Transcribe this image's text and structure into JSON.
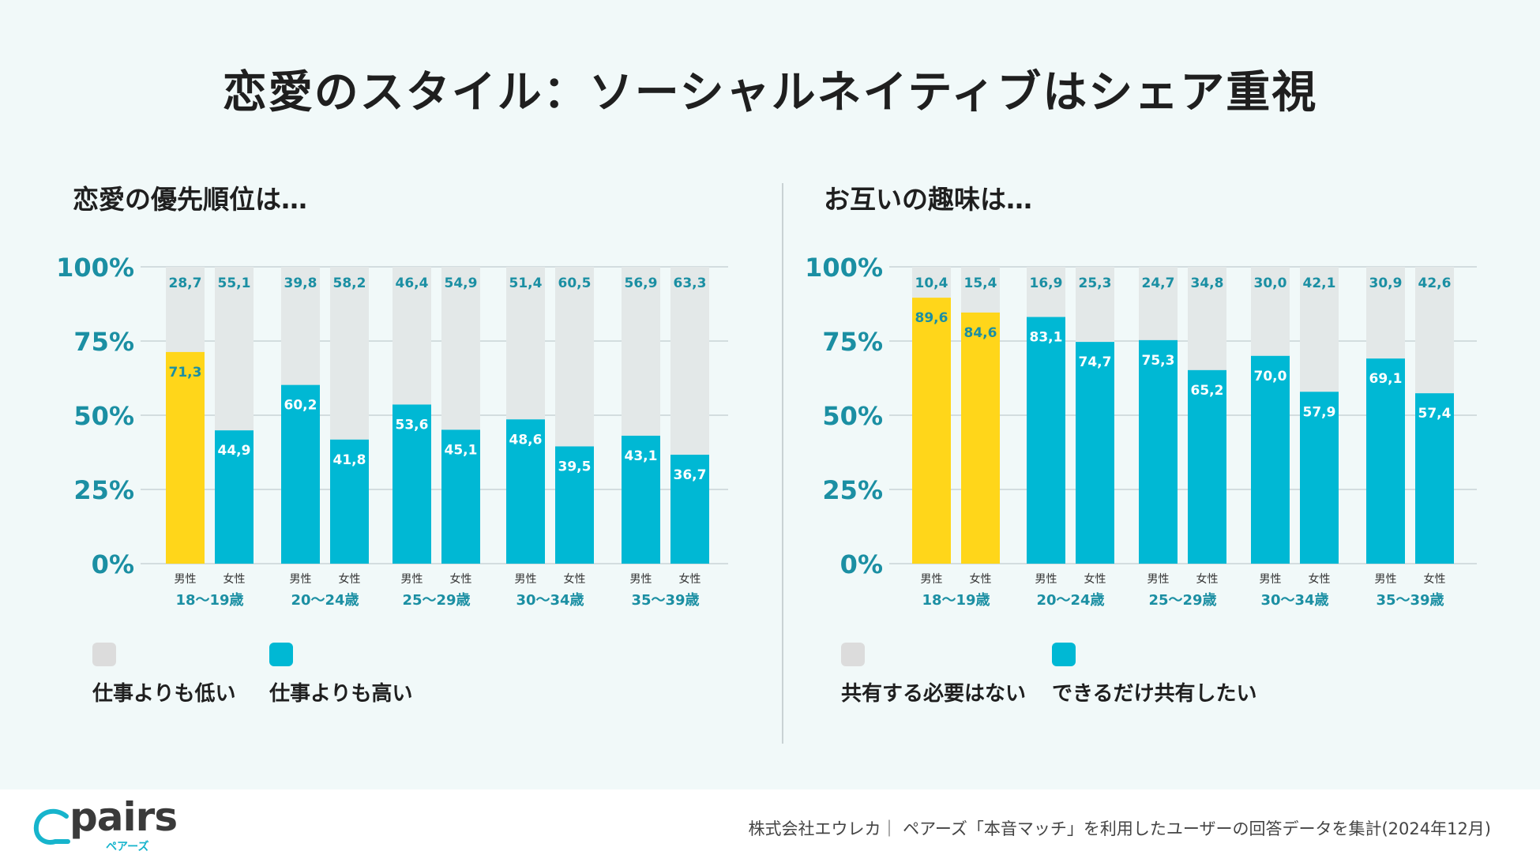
{
  "title": "恋愛のスタイル：ソーシャルネイティブはシェア重視",
  "colors": {
    "gray": "#e3e8e8",
    "blue": "#00b8d4",
    "yellow": "#ffd61a",
    "tick": "#1b8fa3",
    "bg": "#f1f9f9"
  },
  "left": {
    "heading": "恋愛の優先順位は…",
    "legend": {
      "gray_label": "仕事よりも低い",
      "blue_label": "仕事よりも高い"
    }
  },
  "right": {
    "heading": "お互いの趣味は…",
    "legend": {
      "gray_label": "共有する必要はない",
      "blue_label": "できるだけ共有したい"
    }
  },
  "chart_data": [
    {
      "type": "bar",
      "title": "恋愛の優先順位は…",
      "ylim": [
        0,
        100
      ],
      "yticks": [
        "0%",
        "25%",
        "50%",
        "75%",
        "100%"
      ],
      "groups": [
        "18〜19歳",
        "20〜24歳",
        "25〜29歳",
        "30〜34歳",
        "35〜39歳"
      ],
      "subcategories": [
        "男性",
        "女性"
      ],
      "highlight_group": 0,
      "highlight_sub": 0,
      "series": [
        {
          "name": "仕事よりも高い",
          "values": [
            "71,3",
            "44,9",
            "60,2",
            "41,8",
            "53,6",
            "45,1",
            "48,6",
            "39,5",
            "43,1",
            "36,7"
          ]
        },
        {
          "name": "仕事よりも低い",
          "values": [
            "28,7",
            "55,1",
            "39,8",
            "58,2",
            "46,4",
            "54,9",
            "51,4",
            "60,5",
            "56,9",
            "63,3"
          ]
        }
      ]
    },
    {
      "type": "bar",
      "title": "お互いの趣味は…",
      "ylim": [
        0,
        100
      ],
      "yticks": [
        "0%",
        "25%",
        "50%",
        "75%",
        "100%"
      ],
      "groups": [
        "18〜19歳",
        "20〜24歳",
        "25〜29歳",
        "30〜34歳",
        "35〜39歳"
      ],
      "subcategories": [
        "男性",
        "女性"
      ],
      "highlight_group": 0,
      "highlight_sub": -1,
      "series": [
        {
          "name": "できるだけ共有したい",
          "values": [
            "89,6",
            "84,6",
            "83,1",
            "74,7",
            "75,3",
            "65,2",
            "70,0",
            "57,9",
            "69,1",
            "57,4"
          ]
        },
        {
          "name": "共有する必要はない",
          "values": [
            "10,4",
            "15,4",
            "16,9",
            "25,3",
            "24,7",
            "34,8",
            "30,0",
            "42,1",
            "30,9",
            "42,6"
          ]
        }
      ]
    }
  ],
  "footer": {
    "logo": "pairs",
    "logo_sub": "ペアーズ",
    "source": "株式会社エウレカ｜ ペアーズ「本音マッチ」を利用したユーザーの回答データを集計(2024年12月)"
  }
}
